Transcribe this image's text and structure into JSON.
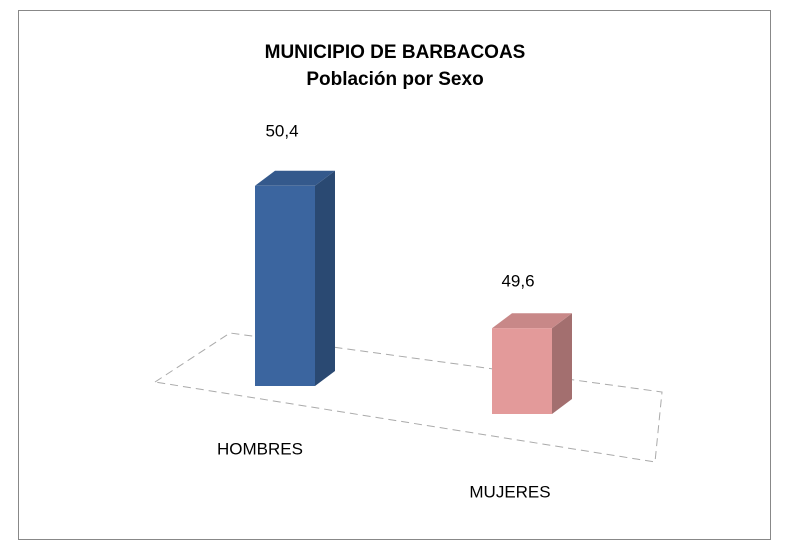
{
  "chart_data": {
    "type": "bar3d",
    "title": "MUNICIPIO DE BARBACOAS",
    "subtitle": "Población por Sexo",
    "categories": [
      "HOMBRES",
      "MUJERES"
    ],
    "values": [
      50.4,
      49.6
    ],
    "value_labels": [
      "50,4",
      "49,6"
    ],
    "colors": [
      "#3b659f",
      "#e39a9a"
    ],
    "ylim": [
      49,
      50.6
    ]
  }
}
